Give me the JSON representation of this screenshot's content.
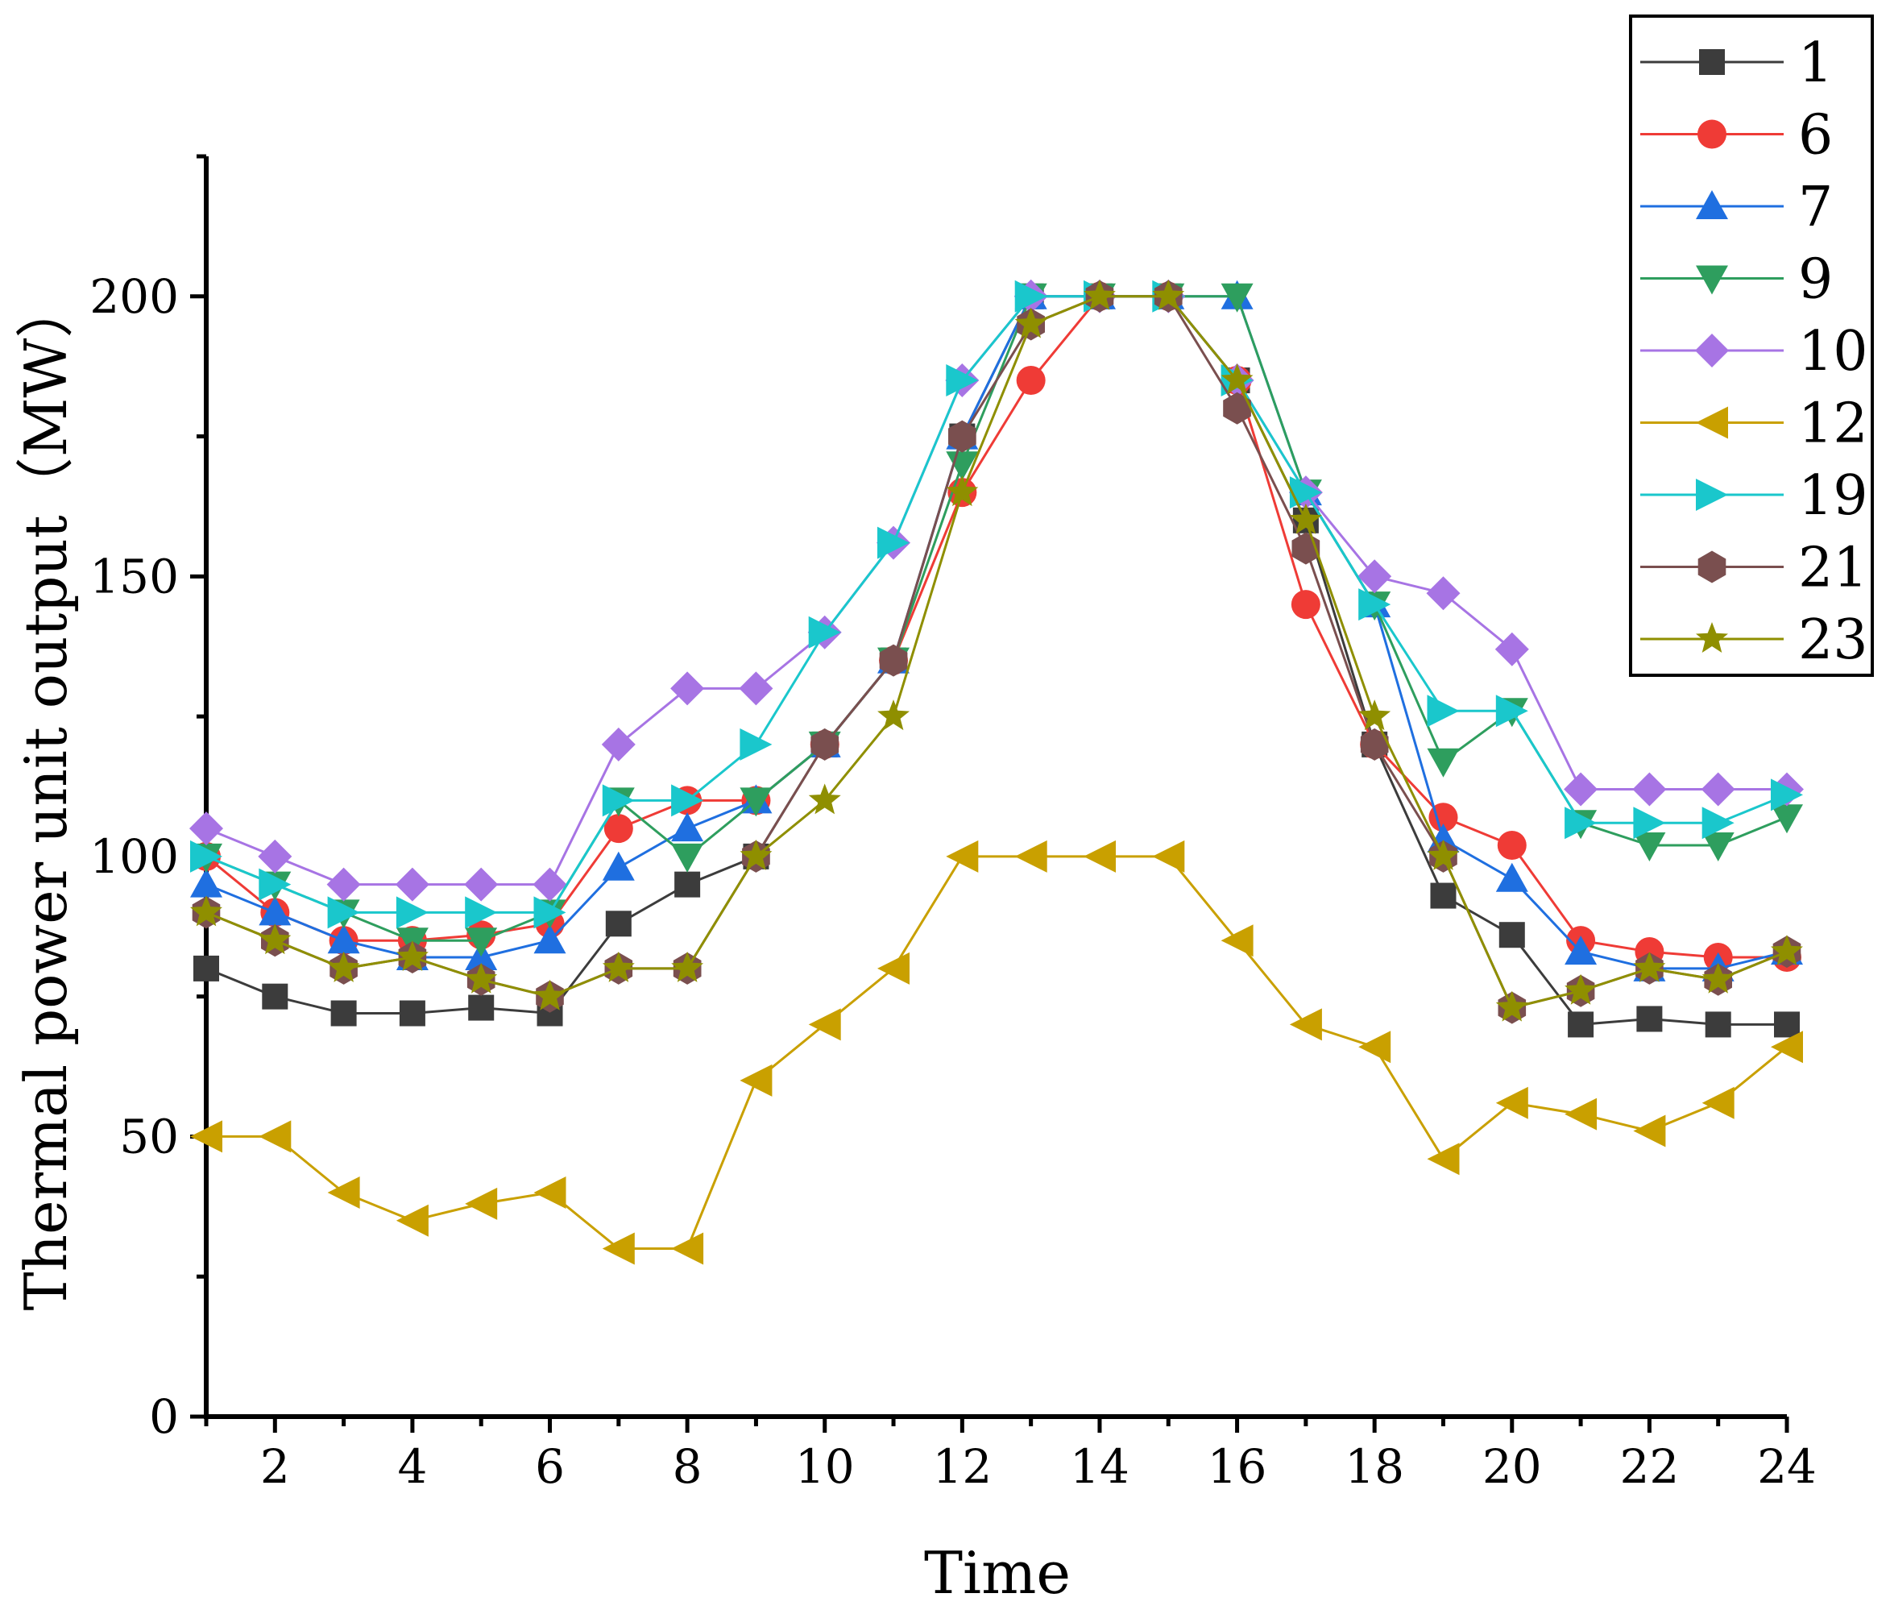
{
  "chart_data": {
    "type": "line",
    "title": "",
    "xlabel": "Time",
    "ylabel": "Thermal power unit output（MW）",
    "x": [
      1,
      2,
      3,
      4,
      5,
      6,
      7,
      8,
      9,
      10,
      11,
      12,
      13,
      14,
      15,
      16,
      17,
      18,
      19,
      20,
      21,
      22,
      23,
      24
    ],
    "xlim": [
      1,
      24
    ],
    "ylim": [
      0,
      225
    ],
    "x_ticks": [
      2,
      4,
      6,
      8,
      10,
      12,
      14,
      16,
      18,
      20,
      22,
      24
    ],
    "x_tick_labels": [
      "2",
      "4",
      "6",
      "8",
      "10",
      "12",
      "14",
      "16",
      "18",
      "20",
      "22",
      "24"
    ],
    "y_ticks": [
      0,
      50,
      100,
      150,
      200
    ],
    "y_tick_labels": [
      "0",
      "50",
      "100",
      "150",
      "200"
    ],
    "y_minor_ticks": [
      25,
      75,
      125,
      175,
      225
    ],
    "grid": false,
    "legend_position": "top-right",
    "series": [
      {
        "name": "1",
        "color": "#3c3c3c",
        "marker": "square",
        "values": [
          80,
          75,
          72,
          72,
          73,
          72,
          88,
          95,
          100,
          120,
          135,
          175,
          200,
          200,
          200,
          185,
          160,
          120,
          93,
          86,
          70,
          71,
          70,
          70
        ]
      },
      {
        "name": "6",
        "color": "#ef3b36",
        "marker": "circle",
        "values": [
          100,
          90,
          85,
          85,
          86,
          88,
          105,
          110,
          110,
          120,
          135,
          165,
          185,
          200,
          200,
          185,
          145,
          120,
          107,
          102,
          85,
          83,
          82,
          82
        ]
      },
      {
        "name": "7",
        "color": "#1f6fe0",
        "marker": "triangle-up",
        "values": [
          95,
          90,
          85,
          82,
          82,
          85,
          98,
          105,
          110,
          120,
          135,
          175,
          200,
          200,
          200,
          200,
          165,
          145,
          103,
          96,
          83,
          80,
          80,
          83
        ]
      },
      {
        "name": "9",
        "color": "#2e9e5e",
        "marker": "triangle-down",
        "values": [
          100,
          95,
          90,
          85,
          85,
          90,
          110,
          100,
          110,
          120,
          135,
          170,
          200,
          200,
          200,
          200,
          165,
          145,
          117,
          126,
          106,
          102,
          102,
          107
        ]
      },
      {
        "name": "10",
        "color": "#a774e4",
        "marker": "diamond",
        "values": [
          105,
          100,
          95,
          95,
          95,
          95,
          120,
          130,
          130,
          140,
          156,
          185,
          200,
          200,
          200,
          185,
          165,
          150,
          147,
          137,
          112,
          112,
          112,
          112
        ]
      },
      {
        "name": "12",
        "color": "#c9a000",
        "marker": "triangle-left",
        "values": [
          50,
          50,
          40,
          35,
          38,
          40,
          30,
          30,
          60,
          70,
          80,
          100,
          100,
          100,
          100,
          85,
          70,
          66,
          46,
          56,
          54,
          51,
          56,
          66
        ]
      },
      {
        "name": "19",
        "color": "#1ac7cc",
        "marker": "triangle-right",
        "values": [
          100,
          95,
          90,
          90,
          90,
          90,
          110,
          110,
          120,
          140,
          156,
          185,
          200,
          200,
          200,
          185,
          165,
          145,
          126,
          126,
          106,
          106,
          106,
          111
        ]
      },
      {
        "name": "21",
        "color": "#7a4f4f",
        "marker": "hexagon",
        "values": [
          90,
          85,
          80,
          82,
          78,
          75,
          80,
          80,
          100,
          120,
          135,
          175,
          195,
          200,
          200,
          180,
          155,
          120,
          100,
          73,
          76,
          80,
          78,
          83
        ]
      },
      {
        "name": "23",
        "color": "#8f8f00",
        "marker": "star",
        "values": [
          90,
          85,
          80,
          82,
          78,
          75,
          80,
          80,
          100,
          110,
          125,
          165,
          195,
          200,
          200,
          185,
          160,
          125,
          100,
          73,
          76,
          80,
          78,
          83
        ]
      }
    ]
  }
}
